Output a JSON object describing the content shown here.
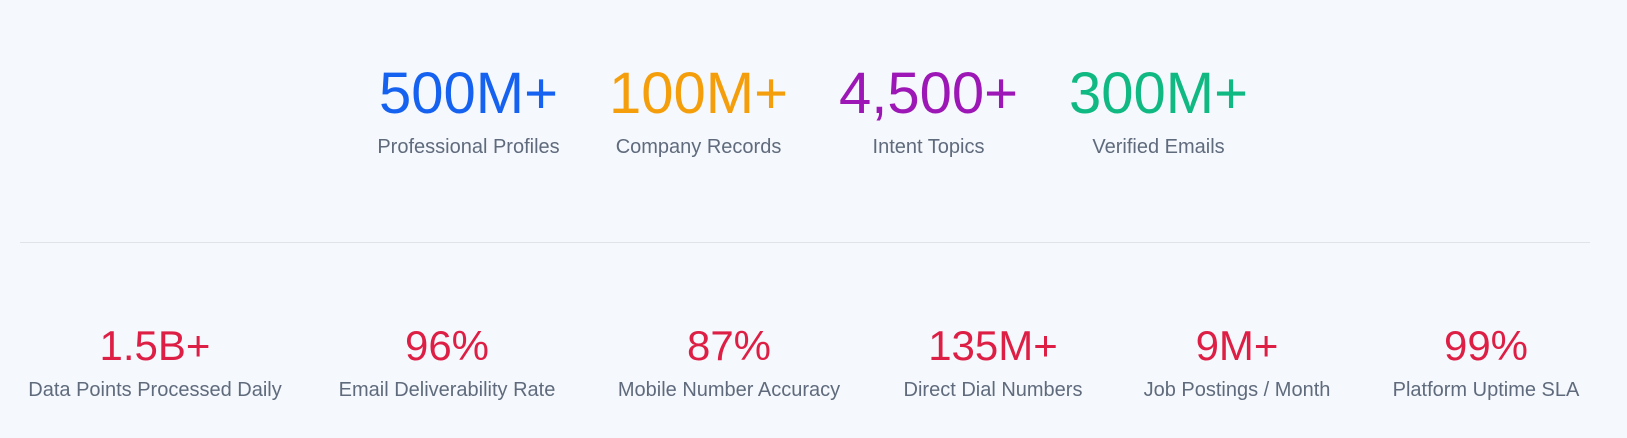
{
  "colors": {
    "background": "#f5f8fc",
    "label_text": "#5f6b7d",
    "divider": "#dfe4ea",
    "bottom_value": "#de1f45"
  },
  "top_stats": [
    {
      "value": "500M+",
      "label": "Professional Profiles",
      "color": "#1662f0"
    },
    {
      "value": "100M+",
      "label": "Company Records",
      "color": "#f59e0b"
    },
    {
      "value": "4,500+",
      "label": "Intent Topics",
      "color": "#9d17b6"
    },
    {
      "value": "300M+",
      "label": "Verified Emails",
      "color": "#10b981"
    }
  ],
  "bottom_stats": [
    {
      "value": "1.5B+",
      "label": "Data Points Processed Daily"
    },
    {
      "value": "96%",
      "label": "Email Deliverability Rate"
    },
    {
      "value": "87%",
      "label": "Mobile Number Accuracy"
    },
    {
      "value": "135M+",
      "label": "Direct Dial Numbers"
    },
    {
      "value": "9M+",
      "label": "Job Postings / Month"
    },
    {
      "value": "99%",
      "label": "Platform Uptime SLA"
    }
  ]
}
